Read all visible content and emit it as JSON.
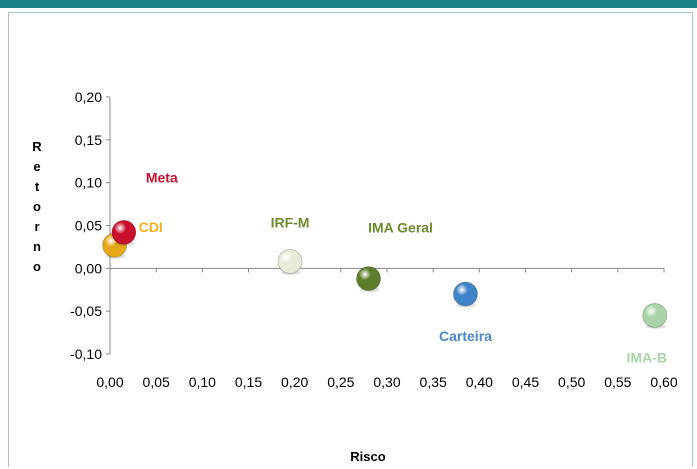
{
  "chart_data": {
    "type": "scatter",
    "title": "",
    "xlabel": "Risco",
    "ylabel": "Retorno",
    "xlim": [
      0,
      0.6
    ],
    "ylim": [
      -0.1,
      0.2
    ],
    "xticks": [
      "0,00",
      "0,05",
      "0,10",
      "0,15",
      "0,20",
      "0,25",
      "0,30",
      "0,35",
      "0,40",
      "0,45",
      "0,50",
      "0,55",
      "0,60"
    ],
    "yticks": [
      "0,20",
      "0,15",
      "0,10",
      "0,05",
      "0,00",
      "-0,05",
      "-0,10"
    ],
    "grid": false,
    "legend": "none",
    "points": [
      {
        "name": "CDI",
        "x": 0.005,
        "y": 0.027,
        "color": "#e6a817",
        "label_color": "#f2b01e"
      },
      {
        "name": "Meta",
        "x": 0.015,
        "y": 0.042,
        "color": "#c8102e",
        "label_color": "#c8102e"
      },
      {
        "name": "IRF-M",
        "x": 0.195,
        "y": 0.008,
        "color": "#e7ecd9",
        "label_color": "#6d8b2e"
      },
      {
        "name": "IMA Geral",
        "x": 0.28,
        "y": -0.012,
        "color": "#5e7d2a",
        "label_color": "#6d8b2e"
      },
      {
        "name": "Carteira",
        "x": 0.385,
        "y": -0.03,
        "color": "#3f83c8",
        "label_color": "#4a86c8"
      },
      {
        "name": "IMA-B",
        "x": 0.59,
        "y": -0.055,
        "color": "#a9d4a8",
        "label_color": "#a9d4a8"
      }
    ]
  }
}
